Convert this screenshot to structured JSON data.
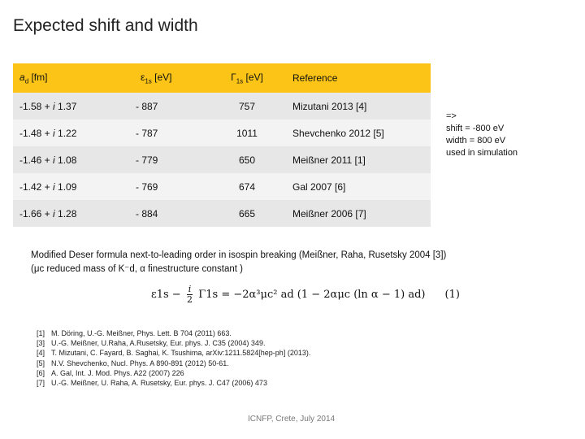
{
  "title": "Expected shift and width",
  "table": {
    "headers": [
      "a_d [fm]",
      "ε1s [eV]",
      "Γ1s [eV]",
      "Reference"
    ],
    "header_parts": {
      "ad_sym": "a",
      "ad_sub": "d",
      "ad_unit": " [fm]",
      "eps_sym": "ε",
      "eps_sub": "1s",
      "eps_unit": " [eV]",
      "gamma_sym": "Γ",
      "gamma_sub": "1s",
      "gamma_unit": " [eV]",
      "reference": "Reference"
    },
    "rows": [
      {
        "ad_re": "-1.58 + ",
        "ad_i": "i",
        "ad_im": " 1.37",
        "eps": "- 887",
        "gamma": "757",
        "ref": "Mizutani 2013  [4]"
      },
      {
        "ad_re": "-1.48 + ",
        "ad_i": "i",
        "ad_im": " 1.22",
        "eps": "- 787",
        "gamma": "1011",
        "ref": "Shevchenko 2012  [5]"
      },
      {
        "ad_re": "-1.46 + ",
        "ad_i": "i",
        "ad_im": " 1.08",
        "eps": "- 779",
        "gamma": "650",
        "ref": "Meißner 2011  [1]"
      },
      {
        "ad_re": "-1.42 + ",
        "ad_i": "i",
        "ad_im": " 1.09",
        "eps": "- 769",
        "gamma": "674",
        "ref": "Gal 2007  [6]"
      },
      {
        "ad_re": "-1.66 + ",
        "ad_i": "i",
        "ad_im": " 1.28",
        "eps": "- 884",
        "gamma": "665",
        "ref": "Meißner 2006   [7]"
      }
    ]
  },
  "conclusion": "=>\nshift = -800 eV\nwidth = 800 eV\nused in simulation",
  "deser": {
    "line1": "Modified Deser formula next-to-leading order in isospin breaking (Meißner, Raha, Rusetsky 2004 [3])",
    "line2": "(μc reduced mass of K⁻d, α finestructure constant )"
  },
  "formula": {
    "lhs": "ε1s − ",
    "frac_num": "i",
    "frac_den": "2",
    "rhs": "Γ1s = −2α³μc² ad (1 − 2αμc (ln α − 1) ad)",
    "eqno": "(1)"
  },
  "references": [
    {
      "num": "[1]",
      "text": "M. Döring, U.-G. Meißner, Phys. Lett. B 704 (2011) 663."
    },
    {
      "num": "[3]",
      "text": "U.-G. Meißner, U.Raha, A.Rusetsky, Eur. phys. J. C35 (2004) 349."
    },
    {
      "num": "[4]",
      "text": "T. Mizutani, C. Fayard, B. Saghai, K. Tsushima, arXiv:1211.5824[hep-ph] (2013)."
    },
    {
      "num": "[5]",
      "text": "N.V. Shevchenko, Nucl. Phys. A 890-891 (2012) 50-61."
    },
    {
      "num": "[6]",
      "text": "A. Gal, Int. J. Mod. Phys. A22 (2007) 226"
    },
    {
      "num": "[7]",
      "text": "U.-G. Meißner, U. Raha, A. Rusetsky, Eur. phys. J. C47 (2006) 473"
    }
  ],
  "footer": "ICNFP, Crete, July 2014",
  "colors": {
    "header_bg": "#fbc416",
    "row_dark": "#e7e7e7",
    "row_light": "#f3f3f3"
  }
}
